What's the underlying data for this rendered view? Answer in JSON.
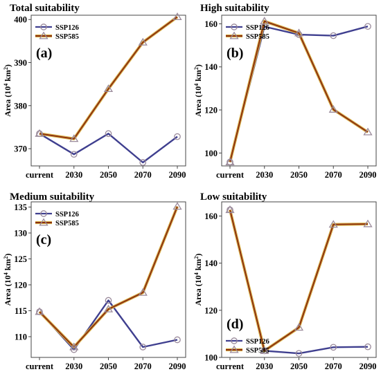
{
  "chart_data": [
    {
      "type": "line",
      "panel_label": "(a)",
      "title": "Total suitability",
      "ylabel_main": "Area (10",
      "ylabel_sup": "4",
      "ylabel_unit": " km",
      "ylabel_sup2": "2",
      "ylabel_end": ")",
      "categories": [
        "current",
        "2030",
        "2050",
        "2070",
        "2090"
      ],
      "ylim": [
        366,
        401
      ],
      "yticks": [
        370,
        380,
        390,
        400
      ],
      "legend_position": "top-left",
      "series": [
        {
          "name": "SSP126",
          "values": [
            373.5,
            368.7,
            373.5,
            366.8,
            372.8
          ]
        },
        {
          "name": "SSP585",
          "values": [
            373.5,
            372.3,
            383.9,
            394.7,
            400.6
          ]
        }
      ]
    },
    {
      "type": "line",
      "panel_label": "(b)",
      "title": "High suitability",
      "ylabel_main": "Area (10",
      "ylabel_sup": "4",
      "ylabel_unit": " km",
      "ylabel_sup2": "2",
      "ylabel_end": ")",
      "categories": [
        "current",
        "2030",
        "2050",
        "2070",
        "2090"
      ],
      "ylim": [
        94,
        164
      ],
      "yticks": [
        100,
        120,
        140,
        160
      ],
      "legend_position": "top-left",
      "series": [
        {
          "name": "SSP126",
          "values": [
            95.8,
            158.7,
            155.0,
            154.5,
            158.8
          ]
        },
        {
          "name": "SSP585",
          "values": [
            95.8,
            161.2,
            155.7,
            120.2,
            109.7
          ]
        }
      ]
    },
    {
      "type": "line",
      "panel_label": "(c)",
      "title": "Medium suitability",
      "ylabel_main": "Area (10",
      "ylabel_sup": "4",
      "ylabel_unit": " km",
      "ylabel_sup2": "2",
      "ylabel_end": ")",
      "categories": [
        "current",
        "2030",
        "2050",
        "2070",
        "2090"
      ],
      "ylim": [
        106,
        136
      ],
      "yticks": [
        110,
        115,
        120,
        125,
        130,
        135
      ],
      "legend_position": "top-left",
      "series": [
        {
          "name": "SSP126",
          "values": [
            114.8,
            107.5,
            117.0,
            108.0,
            109.4
          ]
        },
        {
          "name": "SSP585",
          "values": [
            114.8,
            108.0,
            115.3,
            118.5,
            135.1
          ]
        }
      ]
    },
    {
      "type": "line",
      "panel_label": "(d)",
      "title": "Low suitability",
      "ylabel_main": "Area (10",
      "ylabel_sup": "4",
      "ylabel_unit": " km",
      "ylabel_sup2": "2",
      "ylabel_end": ")",
      "categories": [
        "current",
        "2030",
        "2050",
        "2070",
        "2090"
      ],
      "ylim": [
        100,
        166
      ],
      "yticks": [
        100,
        120,
        140,
        160
      ],
      "legend_position": "bottom-left",
      "series": [
        {
          "name": "SSP126",
          "values": [
            162.6,
            102.8,
            101.7,
            104.3,
            104.5
          ]
        },
        {
          "name": "SSP585",
          "values": [
            162.6,
            102.8,
            112.7,
            156.4,
            156.6
          ]
        }
      ]
    }
  ],
  "colors": {
    "ssp126_line": "#3f3f8f",
    "ssp585_line": "#8b2e10",
    "ssp585_halo": "#d8b24a",
    "marker": "#9a8a9a",
    "axis": "#444444"
  }
}
